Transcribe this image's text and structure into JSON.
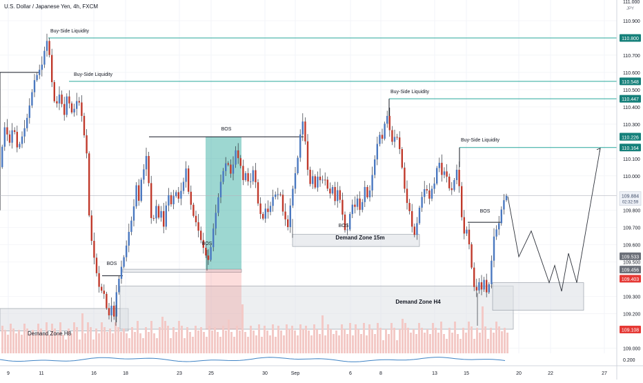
{
  "title": "U.S. Dollar / Japanese Yen, 4h, FXCM",
  "currency_label": "JPY",
  "colors": {
    "up": "#4a78c0",
    "down": "#c0392b",
    "level": "#26a69a",
    "zone": "#dfe2e6",
    "zone_edge": "#9aa1aa",
    "volume": "#f3c9c6",
    "osc": "#3d82c4"
  },
  "annotations": {
    "bsl1": "Buy-Side Liquidity",
    "bsl2": "Buy-Side Liquidity",
    "bsl3": "Buy-Side Liquidity",
    "bsl4": "Buy-Side Liquidity",
    "bos_top": "BOS",
    "bos_left": "BOS",
    "bos_mid": "BOS",
    "bos_center": "BOS",
    "bos_right": "BOS",
    "zone_h8": "Demand Zone H8",
    "zone_h4": "Demand Zone H4",
    "zone_15m": "Demand Zone 15m"
  },
  "chart_data": {
    "type": "candlestick",
    "title": "U.S. Dollar / Japanese Yen, 4h, FXCM",
    "x_ticks": [
      "9",
      "11",
      "16",
      "18",
      "23",
      "25",
      "30",
      "Sep",
      "6",
      "8",
      "13",
      "15",
      "20",
      "22",
      "27"
    ],
    "y_ticks": [
      "110.900",
      "110.700",
      "110.600",
      "110.500",
      "110.400",
      "110.300",
      "110.100",
      "110.000",
      "109.800",
      "109.700",
      "109.600",
      "109.500",
      "109.300",
      "109.200",
      "109.000"
    ],
    "y_top_partial": "111.000",
    "ylim": [
      108.97,
      111.02
    ],
    "levels": [
      {
        "value": 110.8,
        "label": "110.800",
        "color": "#15807a"
      },
      {
        "value": 110.548,
        "label": "110.548",
        "color": "#15807a"
      },
      {
        "value": 110.447,
        "label": "110.447",
        "color": "#15807a"
      },
      {
        "value": 110.227,
        "label": "110.227",
        "color": "#15807a"
      },
      {
        "value": 110.226,
        "label": "110.226",
        "color": "#15807a"
      },
      {
        "value": 110.164,
        "label": "110.164",
        "color": "#15807a"
      },
      {
        "value": 109.533,
        "label": "109.533",
        "color": "#6b6f78"
      },
      {
        "value": 109.456,
        "label": "109.456",
        "color": "#6b6f78"
      },
      {
        "value": 109.403,
        "label": "109.403",
        "color": "#e53935"
      },
      {
        "value": 109.108,
        "label": "109.108",
        "color": "#e53935"
      }
    ],
    "last_price": {
      "value": 109.884,
      "label": "109.884",
      "countdown": "02:32:59"
    },
    "osc_label": "0.200",
    "path": [
      [
        0,
        110.05
      ],
      [
        8,
        110.3
      ],
      [
        14,
        110.18
      ],
      [
        20,
        110.3
      ],
      [
        26,
        110.15
      ],
      [
        32,
        110.22
      ],
      [
        38,
        110.3
      ],
      [
        44,
        110.42
      ],
      [
        50,
        110.55
      ],
      [
        56,
        110.6
      ],
      [
        62,
        110.65
      ],
      [
        66,
        110.75
      ],
      [
        70,
        110.8
      ],
      [
        74,
        110.62
      ],
      [
        78,
        110.45
      ],
      [
        82,
        110.4
      ],
      [
        86,
        110.48
      ],
      [
        90,
        110.42
      ],
      [
        94,
        110.35
      ],
      [
        98,
        110.48
      ],
      [
        102,
        110.4
      ],
      [
        106,
        110.35
      ],
      [
        110,
        110.42
      ],
      [
        114,
        110.45
      ],
      [
        118,
        110.38
      ],
      [
        122,
        110.25
      ],
      [
        126,
        110.15
      ],
      [
        130,
        109.75
      ],
      [
        134,
        109.6
      ],
      [
        138,
        109.5
      ],
      [
        142,
        109.4
      ],
      [
        146,
        109.32
      ],
      [
        150,
        109.35
      ],
      [
        154,
        109.25
      ],
      [
        158,
        109.18
      ],
      [
        162,
        109.25
      ],
      [
        166,
        109.18
      ],
      [
        170,
        109.35
      ],
      [
        174,
        109.42
      ],
      [
        178,
        109.5
      ],
      [
        182,
        109.55
      ],
      [
        186,
        109.65
      ],
      [
        190,
        109.72
      ],
      [
        194,
        109.8
      ],
      [
        198,
        109.95
      ],
      [
        202,
        109.85
      ],
      [
        206,
        110.0
      ],
      [
        210,
        110.05
      ],
      [
        214,
        110.15
      ],
      [
        218,
        109.8
      ],
      [
        222,
        109.7
      ],
      [
        226,
        109.85
      ],
      [
        230,
        109.75
      ],
      [
        234,
        109.8
      ],
      [
        238,
        109.7
      ],
      [
        242,
        109.85
      ],
      [
        246,
        109.9
      ],
      [
        250,
        109.8
      ],
      [
        254,
        109.95
      ],
      [
        258,
        109.85
      ],
      [
        262,
        109.9
      ],
      [
        266,
        109.95
      ],
      [
        270,
        110.05
      ],
      [
        274,
        109.9
      ],
      [
        278,
        109.82
      ],
      [
        282,
        109.75
      ],
      [
        286,
        109.72
      ],
      [
        290,
        109.65
      ],
      [
        294,
        109.6
      ],
      [
        298,
        109.55
      ],
      [
        302,
        109.5
      ],
      [
        306,
        109.58
      ],
      [
        310,
        109.7
      ],
      [
        314,
        109.8
      ],
      [
        318,
        109.9
      ],
      [
        322,
        110.0
      ],
      [
        326,
        110.05
      ],
      [
        330,
        110.1
      ],
      [
        334,
        110.0
      ],
      [
        338,
        110.05
      ],
      [
        342,
        110.15
      ],
      [
        346,
        110.1
      ],
      [
        350,
        110.05
      ],
      [
        354,
        109.95
      ],
      [
        358,
        110.05
      ],
      [
        362,
        109.9
      ],
      [
        366,
        110.05
      ],
      [
        370,
        110.0
      ],
      [
        374,
        109.85
      ],
      [
        378,
        109.78
      ],
      [
        382,
        109.75
      ],
      [
        386,
        109.82
      ],
      [
        390,
        109.78
      ],
      [
        394,
        109.85
      ],
      [
        398,
        109.9
      ],
      [
        402,
        109.88
      ],
      [
        406,
        109.92
      ],
      [
        410,
        109.8
      ],
      [
        414,
        109.75
      ],
      [
        418,
        109.7
      ],
      [
        422,
        109.85
      ],
      [
        426,
        109.95
      ],
      [
        430,
        110.05
      ],
      [
        434,
        110.15
      ],
      [
        438,
        110.35
      ],
      [
        442,
        110.25
      ],
      [
        446,
        110.05
      ],
      [
        450,
        109.95
      ],
      [
        454,
        110.0
      ],
      [
        458,
        109.92
      ],
      [
        462,
        110.02
      ],
      [
        466,
        109.95
      ],
      [
        470,
        110.0
      ],
      [
        474,
        109.95
      ],
      [
        478,
        109.88
      ],
      [
        482,
        109.95
      ],
      [
        486,
        109.85
      ],
      [
        490,
        109.92
      ],
      [
        494,
        109.85
      ],
      [
        498,
        109.75
      ],
      [
        502,
        109.65
      ],
      [
        506,
        109.72
      ],
      [
        510,
        109.85
      ],
      [
        514,
        109.8
      ],
      [
        518,
        109.88
      ],
      [
        522,
        109.8
      ],
      [
        526,
        109.85
      ],
      [
        530,
        109.95
      ],
      [
        534,
        109.85
      ],
      [
        538,
        109.95
      ],
      [
        542,
        110.05
      ],
      [
        546,
        110.15
      ],
      [
        550,
        110.25
      ],
      [
        554,
        110.2
      ],
      [
        558,
        110.3
      ],
      [
        562,
        110.35
      ],
      [
        566,
        110.25
      ],
      [
        570,
        110.18
      ],
      [
        574,
        110.25
      ],
      [
        578,
        110.2
      ],
      [
        582,
        110.1
      ],
      [
        586,
        109.95
      ],
      [
        590,
        109.85
      ],
      [
        594,
        109.8
      ],
      [
        598,
        109.7
      ],
      [
        602,
        109.65
      ],
      [
        606,
        109.75
      ],
      [
        610,
        109.85
      ],
      [
        614,
        109.9
      ],
      [
        618,
        109.95
      ],
      [
        622,
        109.85
      ],
      [
        626,
        109.92
      ],
      [
        630,
        109.95
      ],
      [
        634,
        110.05
      ],
      [
        638,
        110.08
      ],
      [
        642,
        109.98
      ],
      [
        646,
        110.05
      ],
      [
        650,
        109.95
      ],
      [
        654,
        109.9
      ],
      [
        658,
        109.95
      ],
      [
        662,
        110.05
      ],
      [
        666,
        109.95
      ],
      [
        670,
        109.75
      ],
      [
        674,
        109.65
      ],
      [
        678,
        109.7
      ],
      [
        682,
        109.55
      ],
      [
        686,
        109.4
      ],
      [
        690,
        109.3
      ],
      [
        694,
        109.4
      ],
      [
        698,
        109.33
      ],
      [
        702,
        109.4
      ],
      [
        706,
        109.32
      ],
      [
        710,
        109.38
      ],
      [
        714,
        109.55
      ],
      [
        718,
        109.7
      ],
      [
        722,
        109.68
      ],
      [
        726,
        109.78
      ],
      [
        730,
        109.85
      ],
      [
        734,
        109.884
      ]
    ],
    "projection": [
      [
        736,
        109.88
      ],
      [
        752,
        109.53
      ],
      [
        770,
        109.68
      ],
      [
        796,
        109.38
      ],
      [
        804,
        109.48
      ],
      [
        814,
        109.33
      ],
      [
        824,
        109.55
      ],
      [
        836,
        109.38
      ],
      [
        870,
        110.16
      ]
    ]
  }
}
